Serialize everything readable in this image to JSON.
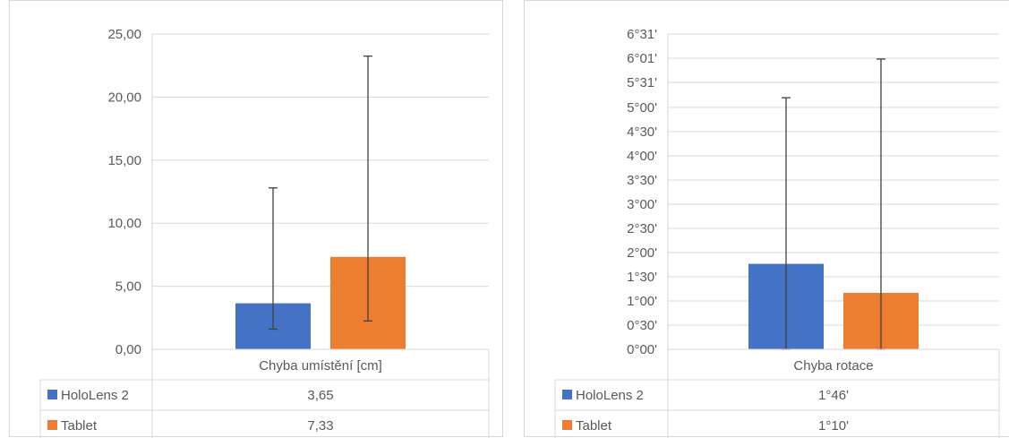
{
  "chart_data": [
    {
      "type": "bar",
      "categories": [
        "Chyba umístění [cm]"
      ],
      "series": [
        {
          "name": "HoloLens 2",
          "values": [
            3.65
          ],
          "value_labels": [
            "3,65"
          ],
          "error_low": [
            1.6
          ],
          "error_high": [
            12.8
          ],
          "color": "#4472C4"
        },
        {
          "name": "Tablet",
          "values": [
            7.33
          ],
          "value_labels": [
            "7,33"
          ],
          "error_low": [
            2.25
          ],
          "error_high": [
            23.25
          ],
          "color": "#ED7D31"
        }
      ],
      "ylim": [
        0,
        25
      ],
      "yticks": [
        0,
        5,
        10,
        15,
        20,
        25
      ],
      "ytick_labels": [
        "0,00",
        "5,00",
        "10,00",
        "15,00",
        "20,00",
        "25,00"
      ],
      "grid": true,
      "legend": "data table"
    },
    {
      "type": "bar",
      "categories": [
        "Chyba rotace"
      ],
      "series": [
        {
          "name": "HoloLens 2",
          "values": [
            106
          ],
          "value_labels": [
            "1°46'"
          ],
          "error_low": [
            0
          ],
          "error_high": [
            312
          ],
          "color": "#4472C4"
        },
        {
          "name": "Tablet",
          "values": [
            70
          ],
          "value_labels": [
            "1°10'"
          ],
          "error_low": [
            0
          ],
          "error_high": [
            360
          ],
          "color": "#ED7D31"
        }
      ],
      "value_unit": "minutes",
      "ylim": [
        0,
        391
      ],
      "yticks": [
        0,
        30,
        60,
        90,
        120,
        150,
        180,
        210,
        240,
        270,
        300,
        331,
        361,
        391
      ],
      "ytick_labels": [
        "0°00'",
        "0°30'",
        "1°00'",
        "1°30'",
        "2°00'",
        "2°30'",
        "3°00'",
        "3°30'",
        "4°00'",
        "4°30'",
        "5°00'",
        "5°31'",
        "6°01'",
        "6°31'"
      ],
      "grid": true,
      "legend": "data table"
    }
  ]
}
